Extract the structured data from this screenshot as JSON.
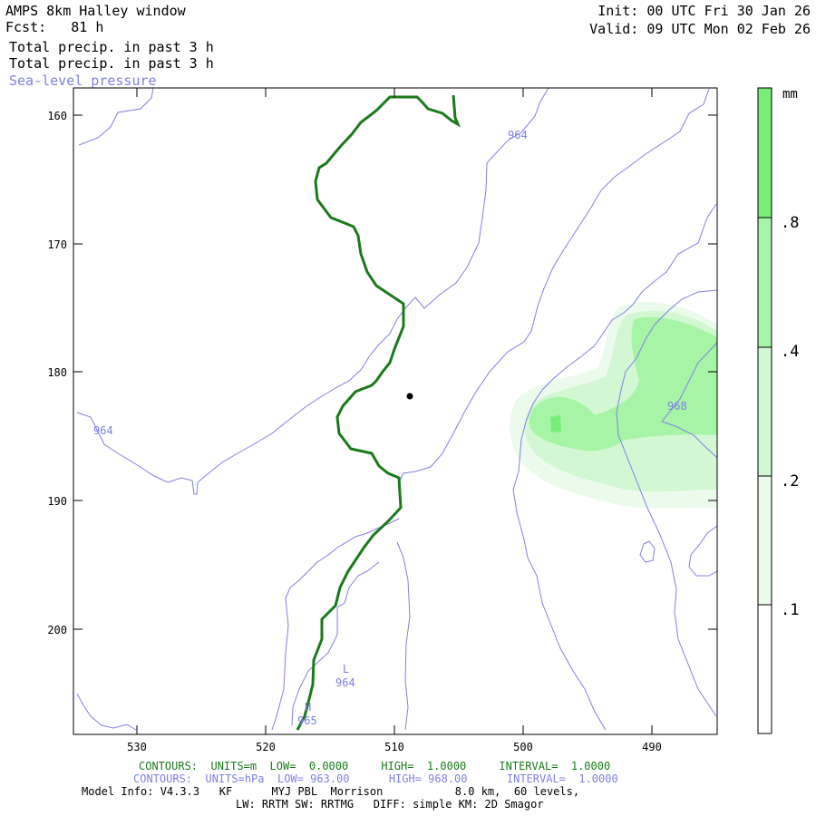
{
  "header": {
    "title": "AMPS 8km Halley window",
    "forecast_label": "Fcst:",
    "forecast_hours": "81 h",
    "field_1": "Total precip. in past 3 h",
    "field_2": "Total precip. in past 3 h",
    "field_3": "Sea-level pressure",
    "init_label": "Init:",
    "init_value": "00 UTC Fri 30 Jan 26",
    "valid_label": "Valid:",
    "valid_value": "09 UTC Mon 02 Feb 26"
  },
  "map": {
    "x_ticks": [
      "530",
      "520",
      "510",
      "500",
      "490"
    ],
    "y_ticks": [
      "160",
      "170",
      "180",
      "190",
      "200"
    ],
    "isobar_labels": [
      "964",
      "964",
      "968",
      "L",
      "964",
      "H",
      "965"
    ],
    "colorbar": {
      "unit": "mm",
      "labels": [
        ".8",
        ".4",
        ".2",
        ".1"
      ],
      "levels": [
        0.1,
        0.2,
        0.4,
        0.8
      ],
      "colors": [
        "#ffffff",
        "#ebfbeb",
        "#d2f7d2",
        "#a6f4a6",
        "#78ee78"
      ]
    },
    "colors": {
      "terrain": "#1a7a1a",
      "isobar": "#8080e6"
    }
  },
  "footer": {
    "contours_m": {
      "prefix": "CONTOURS:",
      "units": "UNITS=m",
      "low": "LOW=  0.0000",
      "high": "HIGH=  1.0000",
      "interval": "INTERVAL=  1.0000"
    },
    "contours_hpa": {
      "prefix": "CONTOURS:",
      "units": "UNITS=hPa",
      "low": "LOW= 963.00",
      "high": "HIGH= 968.00",
      "interval": "INTERVAL=  1.0000"
    },
    "model_info": "Model Info: V4.3.3   KF      MYJ PBL  Morrison           8.0 km,  60 levels,",
    "physics_info": "LW: RRTM SW: RRTMG   DIFF: simple KM: 2D Smagor"
  }
}
